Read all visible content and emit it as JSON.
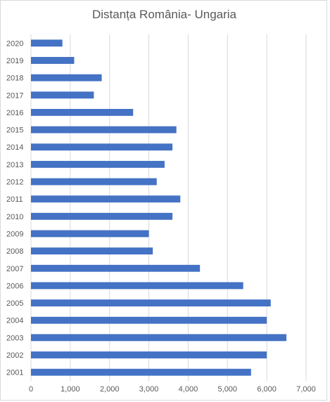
{
  "chart_data": {
    "type": "bar",
    "orientation": "horizontal",
    "title": "Distanța România- Ungaria",
    "categories": [
      "2001",
      "2002",
      "2003",
      "2004",
      "2005",
      "2006",
      "2007",
      "2008",
      "2009",
      "2010",
      "2011",
      "2012",
      "2013",
      "2014",
      "2015",
      "2016",
      "2017",
      "2018",
      "2019",
      "2020"
    ],
    "values": [
      5600,
      6000,
      6500,
      6000,
      6100,
      5400,
      4300,
      3100,
      3000,
      3600,
      3800,
      3200,
      3400,
      3600,
      3700,
      2600,
      1600,
      1800,
      1100,
      800
    ],
    "x_ticks": [
      "0",
      "1,000",
      "2,000",
      "3,000",
      "4,000",
      "5,000",
      "6,000",
      "7,000"
    ],
    "xlim": [
      0,
      7000
    ],
    "grid": "vertical",
    "legend": "none",
    "bar_color": "#4472c4",
    "grid_color": "#d9d9d9"
  }
}
